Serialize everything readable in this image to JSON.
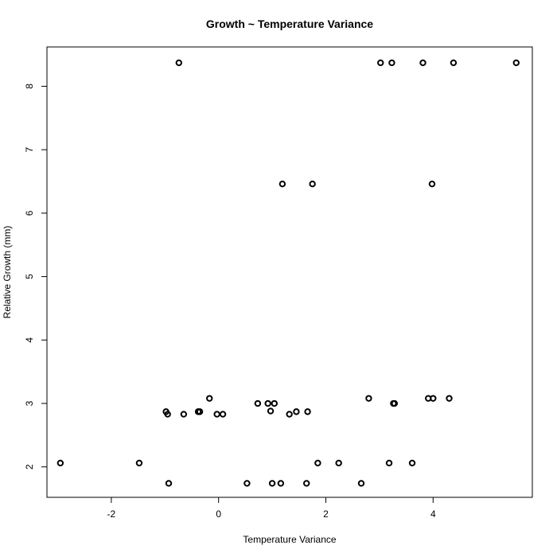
{
  "chart_data": {
    "type": "scatter",
    "title": "Growth ~ Temperature Variance",
    "xlabel": "Temperature Variance",
    "ylabel": "Relative Growth (mm)",
    "xlim": [
      -3.2,
      5.85
    ],
    "ylim": [
      1.52,
      8.62
    ],
    "xticks": [
      -2,
      0,
      2,
      4
    ],
    "yticks": [
      2,
      3,
      4,
      5,
      6,
      7,
      8
    ],
    "xtick_labels": [
      "-2",
      "0",
      "2",
      "4"
    ],
    "ytick_labels": [
      "2",
      "3",
      "4",
      "5",
      "6",
      "7",
      "8"
    ],
    "grid": false,
    "points": [
      {
        "x": -2.95,
        "y": 2.06
      },
      {
        "x": -1.48,
        "y": 2.06
      },
      {
        "x": -0.93,
        "y": 1.74
      },
      {
        "x": 0.53,
        "y": 1.74
      },
      {
        "x": 1.0,
        "y": 1.74
      },
      {
        "x": 1.16,
        "y": 1.74
      },
      {
        "x": 1.64,
        "y": 1.74
      },
      {
        "x": 2.66,
        "y": 1.74
      },
      {
        "x": 1.85,
        "y": 2.06
      },
      {
        "x": 2.24,
        "y": 2.06
      },
      {
        "x": 3.18,
        "y": 2.06
      },
      {
        "x": 3.61,
        "y": 2.06
      },
      {
        "x": -0.98,
        "y": 2.87
      },
      {
        "x": -0.95,
        "y": 2.83
      },
      {
        "x": -0.65,
        "y": 2.83
      },
      {
        "x": -0.38,
        "y": 2.87
      },
      {
        "x": -0.35,
        "y": 2.87
      },
      {
        "x": -0.17,
        "y": 3.08
      },
      {
        "x": -0.03,
        "y": 2.83
      },
      {
        "x": 0.08,
        "y": 2.83
      },
      {
        "x": 0.73,
        "y": 3.0
      },
      {
        "x": 0.92,
        "y": 3.0
      },
      {
        "x": 0.97,
        "y": 2.88
      },
      {
        "x": 1.04,
        "y": 3.0
      },
      {
        "x": 1.32,
        "y": 2.83
      },
      {
        "x": 1.45,
        "y": 2.87
      },
      {
        "x": 1.66,
        "y": 2.87
      },
      {
        "x": 2.8,
        "y": 3.08
      },
      {
        "x": 3.26,
        "y": 3.0
      },
      {
        "x": 3.28,
        "y": 3.0
      },
      {
        "x": 3.91,
        "y": 3.08
      },
      {
        "x": 4.0,
        "y": 3.08
      },
      {
        "x": 4.3,
        "y": 3.08
      },
      {
        "x": 1.19,
        "y": 6.46
      },
      {
        "x": 1.75,
        "y": 6.46
      },
      {
        "x": 3.98,
        "y": 6.46
      },
      {
        "x": -0.74,
        "y": 8.37
      },
      {
        "x": 3.02,
        "y": 8.37
      },
      {
        "x": 3.23,
        "y": 8.37
      },
      {
        "x": 3.81,
        "y": 8.37
      },
      {
        "x": 4.38,
        "y": 8.37
      },
      {
        "x": 5.55,
        "y": 8.37
      }
    ]
  }
}
